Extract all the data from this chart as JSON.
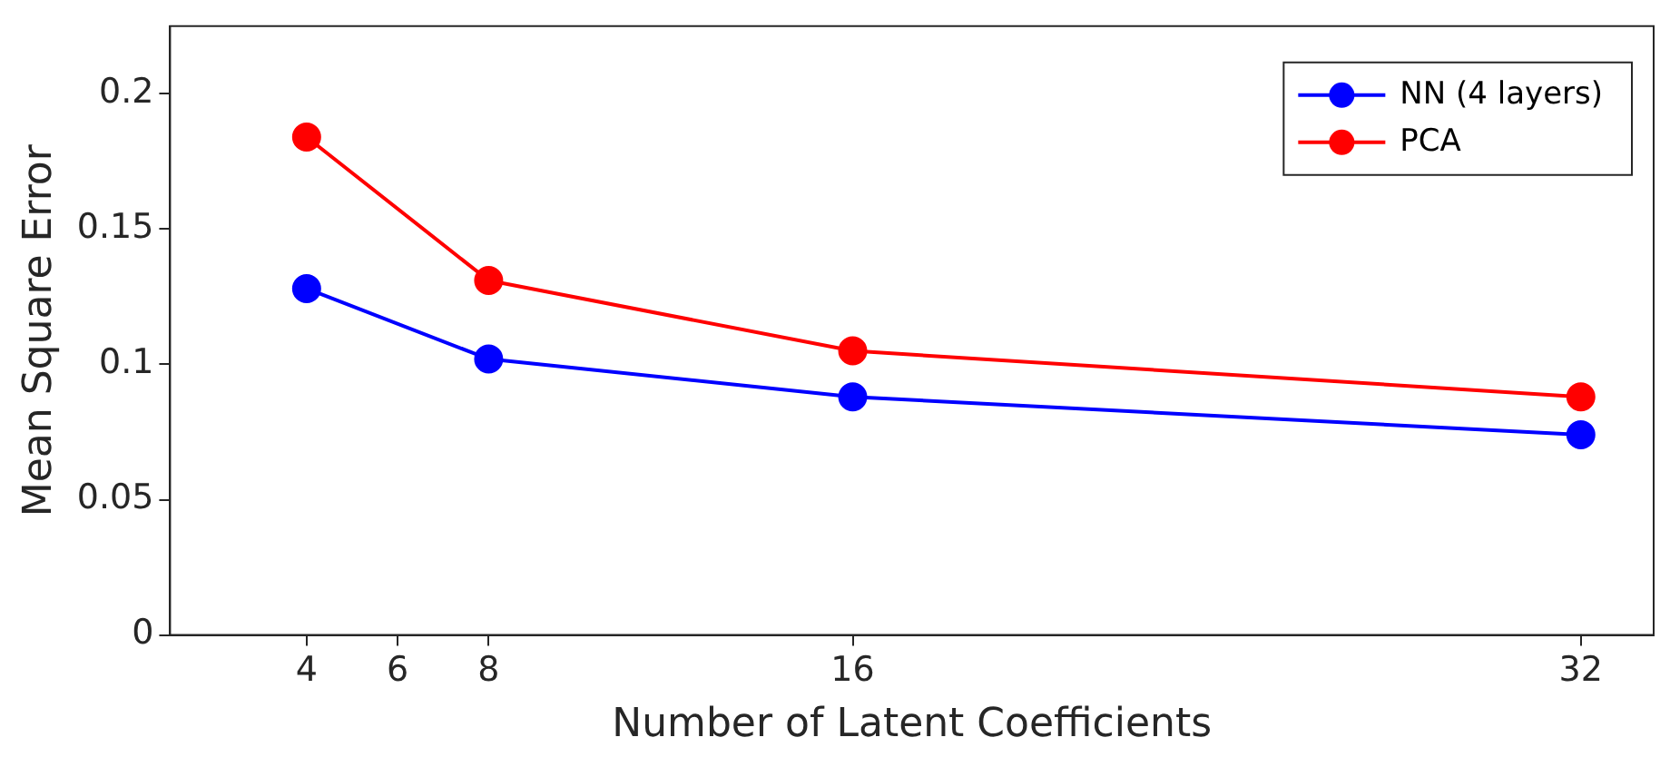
{
  "chart_data": {
    "type": "line",
    "xlabel": "Number of Latent Coefficients",
    "ylabel": "Mean Square Error",
    "x": [
      4,
      8,
      16,
      32
    ],
    "series": [
      {
        "name": "NN (4 layers)",
        "color": "#0000ff",
        "values": [
          0.128,
          0.102,
          0.088,
          0.074
        ]
      },
      {
        "name": "PCA",
        "color": "#ff0000",
        "values": [
          0.184,
          0.131,
          0.105,
          0.088
        ]
      }
    ],
    "xlim": [
      1,
      33.6
    ],
    "xticks": [
      4,
      6,
      8,
      16,
      32
    ],
    "ylim": [
      0,
      0.225
    ],
    "yticks": [
      0,
      0.05,
      0.1,
      0.15,
      0.2
    ],
    "grid": false,
    "legend": "top right",
    "marker": "circle",
    "line_style": "solid"
  }
}
